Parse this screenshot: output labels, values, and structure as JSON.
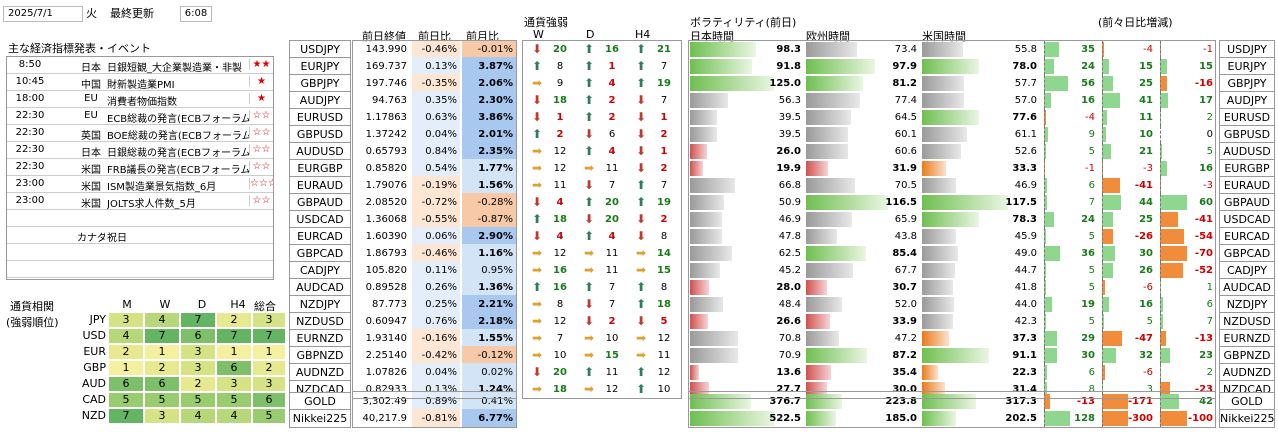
{
  "top": {
    "date": "2025/7/1",
    "weekday": "火",
    "updated_label": "最終更新",
    "time": "6:08"
  },
  "events": {
    "title": "主な経済指標発表・イベント",
    "rows": [
      {
        "time": "8:50",
        "country": "日本",
        "name": "日銀短観_大企業製造業・非製",
        "stars": "★★"
      },
      {
        "time": "10:45",
        "country": "中国",
        "name": "財新製造業PMI",
        "stars": "★"
      },
      {
        "time": "18:00",
        "country": "EU",
        "name": "消費者物価指数",
        "stars": "★"
      },
      {
        "time": "22:30",
        "country": "EU",
        "name": "ECB総裁の発言(ECBフォーラム)",
        "stars": "☆☆"
      },
      {
        "time": "22:30",
        "country": "英国",
        "name": "BOE総裁の発言(ECBフォーラム)",
        "stars": "☆☆"
      },
      {
        "time": "22:30",
        "country": "日本",
        "name": "日銀総裁の発言(ECBフォーラム)",
        "stars": "☆☆"
      },
      {
        "time": "22:30",
        "country": "米国",
        "name": "FRB議長の発言(ECBフォーラム)",
        "stars": "☆☆"
      },
      {
        "time": "23:00",
        "country": "米国",
        "name": "ISM製造業景気指数_6月",
        "stars": "☆☆☆"
      },
      {
        "time": "23:00",
        "country": "米国",
        "name": "JOLTS求人件数_5月",
        "stars": "☆☆"
      },
      {
        "time": "",
        "country": "",
        "name": "",
        "stars": ""
      },
      {
        "time": "",
        "country": "カナダ",
        "name": "祝日",
        "stars": ""
      },
      {
        "time": "",
        "country": "",
        "name": "",
        "stars": ""
      },
      {
        "time": "",
        "country": "",
        "name": "",
        "stars": ""
      }
    ]
  },
  "strength": {
    "title1": "通貨相関",
    "title2": "(強弱順位)",
    "cols": [
      "M",
      "W",
      "D",
      "H4",
      "総合"
    ],
    "rows": [
      {
        "cur": "JPY",
        "vals": [
          "3",
          "4",
          "7",
          "2",
          "3"
        ]
      },
      {
        "cur": "USD",
        "vals": [
          "4",
          "7",
          "6",
          "7",
          "7"
        ]
      },
      {
        "cur": "EUR",
        "vals": [
          "2",
          "1",
          "3",
          "1",
          "1"
        ]
      },
      {
        "cur": "GBP",
        "vals": [
          "1",
          "2",
          "3",
          "6",
          "2"
        ]
      },
      {
        "cur": "AUD",
        "vals": [
          "6",
          "6",
          "2",
          "3",
          "3"
        ]
      },
      {
        "cur": "CAD",
        "vals": [
          "5",
          "5",
          "5",
          "5",
          "6"
        ]
      },
      {
        "cur": "NZD",
        "vals": [
          "7",
          "3",
          "4",
          "4",
          "5"
        ]
      }
    ]
  },
  "headers": {
    "close": "前日終値",
    "day": "前日比",
    "month": "前月比",
    "strength": "通貨強弱",
    "w": "W",
    "d": "D",
    "h4": "H4",
    "vol": "ボラティリティ(前日)",
    "jp": "日本時間",
    "eu": "欧州時間",
    "us": "米国時間",
    "chg": "(前々日比増減)"
  },
  "colors": {
    "up": "#2e7d5b",
    "down": "#c0392b",
    "side": "#e0a030",
    "pos": "#1a7a1a",
    "neg": "#d00000"
  },
  "pairs": [
    {
      "p": "USDJPY",
      "close": "143.990",
      "day": "-0.46%",
      "mon": "-0.01%",
      "w": [
        "d",
        "20"
      ],
      "d": [
        "u",
        "16"
      ],
      "h": [
        "u",
        "21"
      ],
      "jp": "98.3",
      "eu": "73.4",
      "us": "55.8",
      "c1": "35",
      "c2": "-4",
      "c3": "-1"
    },
    {
      "p": "EURJPY",
      "close": "169.737",
      "day": "0.13%",
      "mon": "3.87%",
      "w": [
        "u",
        "8"
      ],
      "d": [
        "u",
        "1"
      ],
      "h": [
        "u",
        "7"
      ],
      "jp": "91.8",
      "eu": "97.9",
      "us": "78.0",
      "c1": "24",
      "c2": "15",
      "c3": "15"
    },
    {
      "p": "GBPJPY",
      "close": "197.746",
      "day": "-0.35%",
      "mon": "2.06%",
      "w": [
        "s",
        "9"
      ],
      "d": [
        "u",
        "4"
      ],
      "h": [
        "u",
        "19"
      ],
      "jp": "125.0",
      "eu": "81.2",
      "us": "57.7",
      "c1": "56",
      "c2": "25",
      "c3": "-16"
    },
    {
      "p": "AUDJPY",
      "close": "94.763",
      "day": "0.35%",
      "mon": "2.30%",
      "w": [
        "d",
        "18"
      ],
      "d": [
        "u",
        "2"
      ],
      "h": [
        "d",
        "7"
      ],
      "jp": "56.3",
      "eu": "77.4",
      "us": "57.0",
      "c1": "16",
      "c2": "41",
      "c3": "17"
    },
    {
      "p": "EURUSD",
      "close": "1.17863",
      "day": "0.63%",
      "mon": "3.86%",
      "w": [
        "d",
        "1"
      ],
      "d": [
        "u",
        "2"
      ],
      "h": [
        "d",
        "1"
      ],
      "jp": "39.5",
      "eu": "64.5",
      "us": "77.6",
      "c1": "-4",
      "c2": "11",
      "c3": "2"
    },
    {
      "p": "GBPUSD",
      "close": "1.37242",
      "day": "0.04%",
      "mon": "2.01%",
      "w": [
        "u",
        "2"
      ],
      "d": [
        "d",
        "6"
      ],
      "h": [
        "d",
        "2"
      ],
      "jp": "39.5",
      "eu": "60.1",
      "us": "61.1",
      "c1": "9",
      "c2": "10",
      "c3": "0"
    },
    {
      "p": "AUDUSD",
      "close": "0.65793",
      "day": "0.84%",
      "mon": "2.35%",
      "w": [
        "s",
        "12"
      ],
      "d": [
        "u",
        "4"
      ],
      "h": [
        "d",
        "1"
      ],
      "jp": "26.0",
      "eu": "60.6",
      "us": "52.6",
      "c1": "5",
      "c2": "21",
      "c3": "5"
    },
    {
      "p": "EURGBP",
      "close": "0.85820",
      "day": "0.54%",
      "mon": "1.77%",
      "w": [
        "s",
        "12"
      ],
      "d": [
        "s",
        "11"
      ],
      "h": [
        "d",
        "2"
      ],
      "jp": "19.9",
      "eu": "31.9",
      "us": "33.3",
      "c1": "-1",
      "c2": "-3",
      "c3": "16"
    },
    {
      "p": "EURAUD",
      "close": "1.79076",
      "day": "-0.19%",
      "mon": "1.56%",
      "w": [
        "s",
        "11"
      ],
      "d": [
        "d",
        "7"
      ],
      "h": [
        "u",
        "7"
      ],
      "jp": "66.8",
      "eu": "70.5",
      "us": "46.9",
      "c1": "6",
      "c2": "-41",
      "c3": "-3"
    },
    {
      "p": "GBPAUD",
      "close": "2.08520",
      "day": "-0.72%",
      "mon": "-0.28%",
      "w": [
        "d",
        "4"
      ],
      "d": [
        "u",
        "20"
      ],
      "h": [
        "u",
        "19"
      ],
      "jp": "50.9",
      "eu": "116.5",
      "us": "117.5",
      "c1": "7",
      "c2": "44",
      "c3": "60"
    },
    {
      "p": "USDCAD",
      "close": "1.36068",
      "day": "-0.55%",
      "mon": "-0.87%",
      "w": [
        "u",
        "18"
      ],
      "d": [
        "d",
        "20"
      ],
      "h": [
        "d",
        "2"
      ],
      "jp": "46.9",
      "eu": "65.9",
      "us": "78.3",
      "c1": "24",
      "c2": "25",
      "c3": "-41"
    },
    {
      "p": "EURCAD",
      "close": "1.60390",
      "day": "0.06%",
      "mon": "2.90%",
      "w": [
        "d",
        "4"
      ],
      "d": [
        "u",
        "4"
      ],
      "h": [
        "d",
        "8"
      ],
      "jp": "47.8",
      "eu": "43.8",
      "us": "45.9",
      "c1": "5",
      "c2": "-26",
      "c3": "-54"
    },
    {
      "p": "GBPCAD",
      "close": "1.86793",
      "day": "-0.46%",
      "mon": "1.16%",
      "w": [
        "s",
        "12"
      ],
      "d": [
        "s",
        "11"
      ],
      "h": [
        "s",
        "14"
      ],
      "jp": "62.5",
      "eu": "85.4",
      "us": "49.0",
      "c1": "36",
      "c2": "30",
      "c3": "-70"
    },
    {
      "p": "CADJPY",
      "close": "105.820",
      "day": "0.11%",
      "mon": "0.95%",
      "w": [
        "s",
        "16"
      ],
      "d": [
        "s",
        "11"
      ],
      "h": [
        "s",
        "15"
      ],
      "jp": "45.2",
      "eu": "67.7",
      "us": "44.7",
      "c1": "5",
      "c2": "26",
      "c3": "-52"
    },
    {
      "p": "AUDCAD",
      "close": "0.89528",
      "day": "0.26%",
      "mon": "1.36%",
      "w": [
        "u",
        "16"
      ],
      "d": [
        "u",
        "7"
      ],
      "h": [
        "u",
        "8"
      ],
      "jp": "28.0",
      "eu": "30.7",
      "us": "41.8",
      "c1": "5",
      "c2": "-6",
      "c3": "1"
    },
    {
      "p": "NZDJPY",
      "close": "87.773",
      "day": "0.25%",
      "mon": "2.21%",
      "w": [
        "s",
        "8"
      ],
      "d": [
        "d",
        "7"
      ],
      "h": [
        "u",
        "18"
      ],
      "jp": "48.4",
      "eu": "52.0",
      "us": "44.0",
      "c1": "19",
      "c2": "16",
      "c3": "6"
    },
    {
      "p": "NZDUSD",
      "close": "0.60947",
      "day": "0.76%",
      "mon": "2.18%",
      "w": [
        "s",
        "12"
      ],
      "d": [
        "d",
        "2"
      ],
      "h": [
        "d",
        "5"
      ],
      "jp": "26.6",
      "eu": "33.9",
      "us": "42.3",
      "c1": "5",
      "c2": "5",
      "c3": "7"
    },
    {
      "p": "EURNZD",
      "close": "1.93140",
      "day": "-0.16%",
      "mon": "1.55%",
      "w": [
        "s",
        "7"
      ],
      "d": [
        "s",
        "10"
      ],
      "h": [
        "s",
        "12"
      ],
      "jp": "70.8",
      "eu": "47.2",
      "us": "37.3",
      "c1": "29",
      "c2": "-47",
      "c3": "-13"
    },
    {
      "p": "GBPNZD",
      "close": "2.25140",
      "day": "-0.42%",
      "mon": "-0.12%",
      "w": [
        "s",
        "10"
      ],
      "d": [
        "s",
        "15"
      ],
      "h": [
        "s",
        "11"
      ],
      "jp": "70.9",
      "eu": "87.2",
      "us": "91.1",
      "c1": "30",
      "c2": "32",
      "c3": "23"
    },
    {
      "p": "AUDNZD",
      "close": "1.07826",
      "day": "0.04%",
      "mon": "0.02%",
      "w": [
        "d",
        "20"
      ],
      "d": [
        "u",
        "11"
      ],
      "h": [
        "u",
        "12"
      ],
      "jp": "13.6",
      "eu": "35.4",
      "us": "22.3",
      "c1": "6",
      "c2": "-6",
      "c3": "2"
    },
    {
      "p": "NZDCAD",
      "close": "0.82933",
      "day": "0.13%",
      "mon": "1.24%",
      "w": [
        "s",
        "18"
      ],
      "d": [
        "s",
        "12"
      ],
      "h": [
        "u",
        "10"
      ],
      "jp": "27.7",
      "eu": "30.0",
      "us": "31.4",
      "c1": "8",
      "c2": "3",
      "c3": "-23"
    }
  ],
  "extras": [
    {
      "p": "GOLD",
      "close": "3,302.49",
      "day": "0.89%",
      "mon": "0.41%",
      "jp": "376.7",
      "eu": "223.8",
      "us": "317.3",
      "c1": "-13",
      "c2": "-171",
      "c3": "42"
    },
    {
      "p": "Nikkei225",
      "close": "40,217.9",
      "day": "-0.81%",
      "mon": "6.77%",
      "jp": "522.5",
      "eu": "185.0",
      "us": "202.5",
      "c1": "128",
      "c2": "-300",
      "c3": "-100"
    }
  ]
}
